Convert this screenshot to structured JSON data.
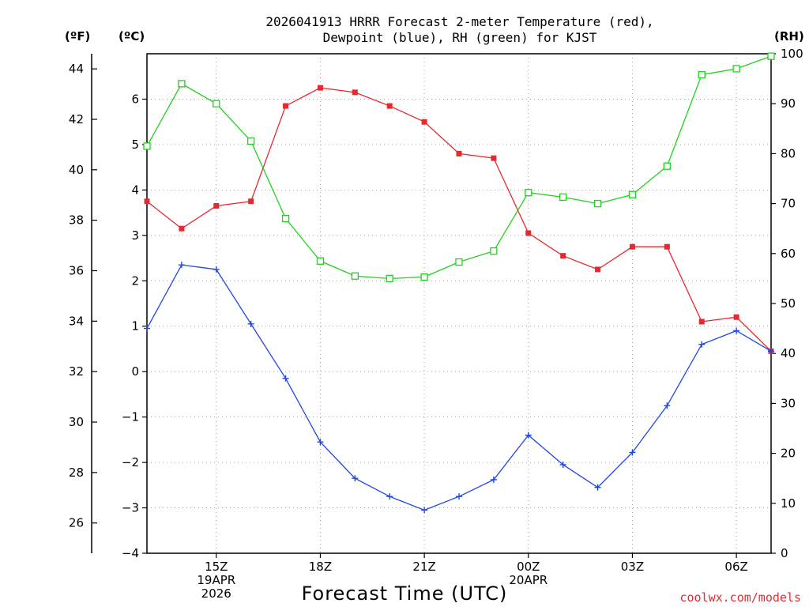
{
  "chart_data": {
    "type": "line",
    "title_lines": [
      "2026041913 HRRR Forecast 2-meter Temperature (red),",
      "Dewpoint (blue), RH (green) for KJST"
    ],
    "xlabel": "Forecast Time (UTC)",
    "credit": "coolwx.com/models",
    "x_hours": [
      13,
      14,
      15,
      16,
      17,
      18,
      19,
      20,
      21,
      22,
      23,
      24,
      25,
      26,
      27,
      28,
      29,
      30,
      31
    ],
    "x_ticks": [
      {
        "hour": 15,
        "lines": [
          "15Z",
          "19APR",
          "2026"
        ]
      },
      {
        "hour": 18,
        "lines": [
          "18Z"
        ]
      },
      {
        "hour": 21,
        "lines": [
          "21Z"
        ]
      },
      {
        "hour": 24,
        "lines": [
          "00Z",
          "20APR"
        ]
      },
      {
        "hour": 27,
        "lines": [
          "03Z"
        ]
      },
      {
        "hour": 30,
        "lines": [
          "06Z"
        ]
      }
    ],
    "xlim": [
      13,
      31
    ],
    "left_axis_celsius": {
      "label": "(ºC)",
      "ylim": [
        -4,
        7
      ],
      "ticks": [
        "-4",
        "-3",
        "-2",
        "-1",
        "0",
        "1",
        "2",
        "3",
        "4",
        "5",
        "6"
      ]
    },
    "left_axis_fahrenheit": {
      "label": "(ºF)",
      "ticks": [
        "26",
        "28",
        "30",
        "32",
        "34",
        "36",
        "38",
        "40",
        "42",
        "44"
      ]
    },
    "right_axis_rh": {
      "label": "(RH)",
      "ylim": [
        0,
        100
      ],
      "ticks": [
        "0",
        "10",
        "20",
        "30",
        "40",
        "50",
        "60",
        "70",
        "80",
        "90",
        "100"
      ]
    },
    "series": [
      {
        "name": "2-meter Temperature",
        "color": "#e8282d",
        "axis": "celsius",
        "marker": "filled-square",
        "values": [
          3.75,
          3.15,
          3.65,
          3.75,
          5.85,
          6.25,
          6.15,
          5.85,
          5.5,
          4.8,
          4.7,
          3.05,
          2.55,
          2.25,
          2.75,
          2.75,
          1.1,
          1.2,
          0.45
        ]
      },
      {
        "name": "Dewpoint",
        "color": "#1e46e6",
        "axis": "celsius",
        "marker": "plus",
        "values": [
          0.95,
          2.35,
          2.25,
          1.05,
          -0.15,
          -1.55,
          -2.35,
          -2.75,
          -3.05,
          -2.75,
          -2.38,
          -1.4,
          -2.05,
          -2.55,
          -1.78,
          -0.75,
          0.6,
          0.9,
          0.45
        ]
      },
      {
        "name": "RH",
        "color": "#1ed21e",
        "axis": "rh",
        "marker": "open-square",
        "values": [
          81.5,
          94,
          90,
          82.5,
          67,
          58.5,
          55.5,
          55,
          55.3,
          58.3,
          60.5,
          72.2,
          71.3,
          70,
          71.8,
          77.5,
          95.8,
          97,
          99.5
        ]
      }
    ]
  }
}
